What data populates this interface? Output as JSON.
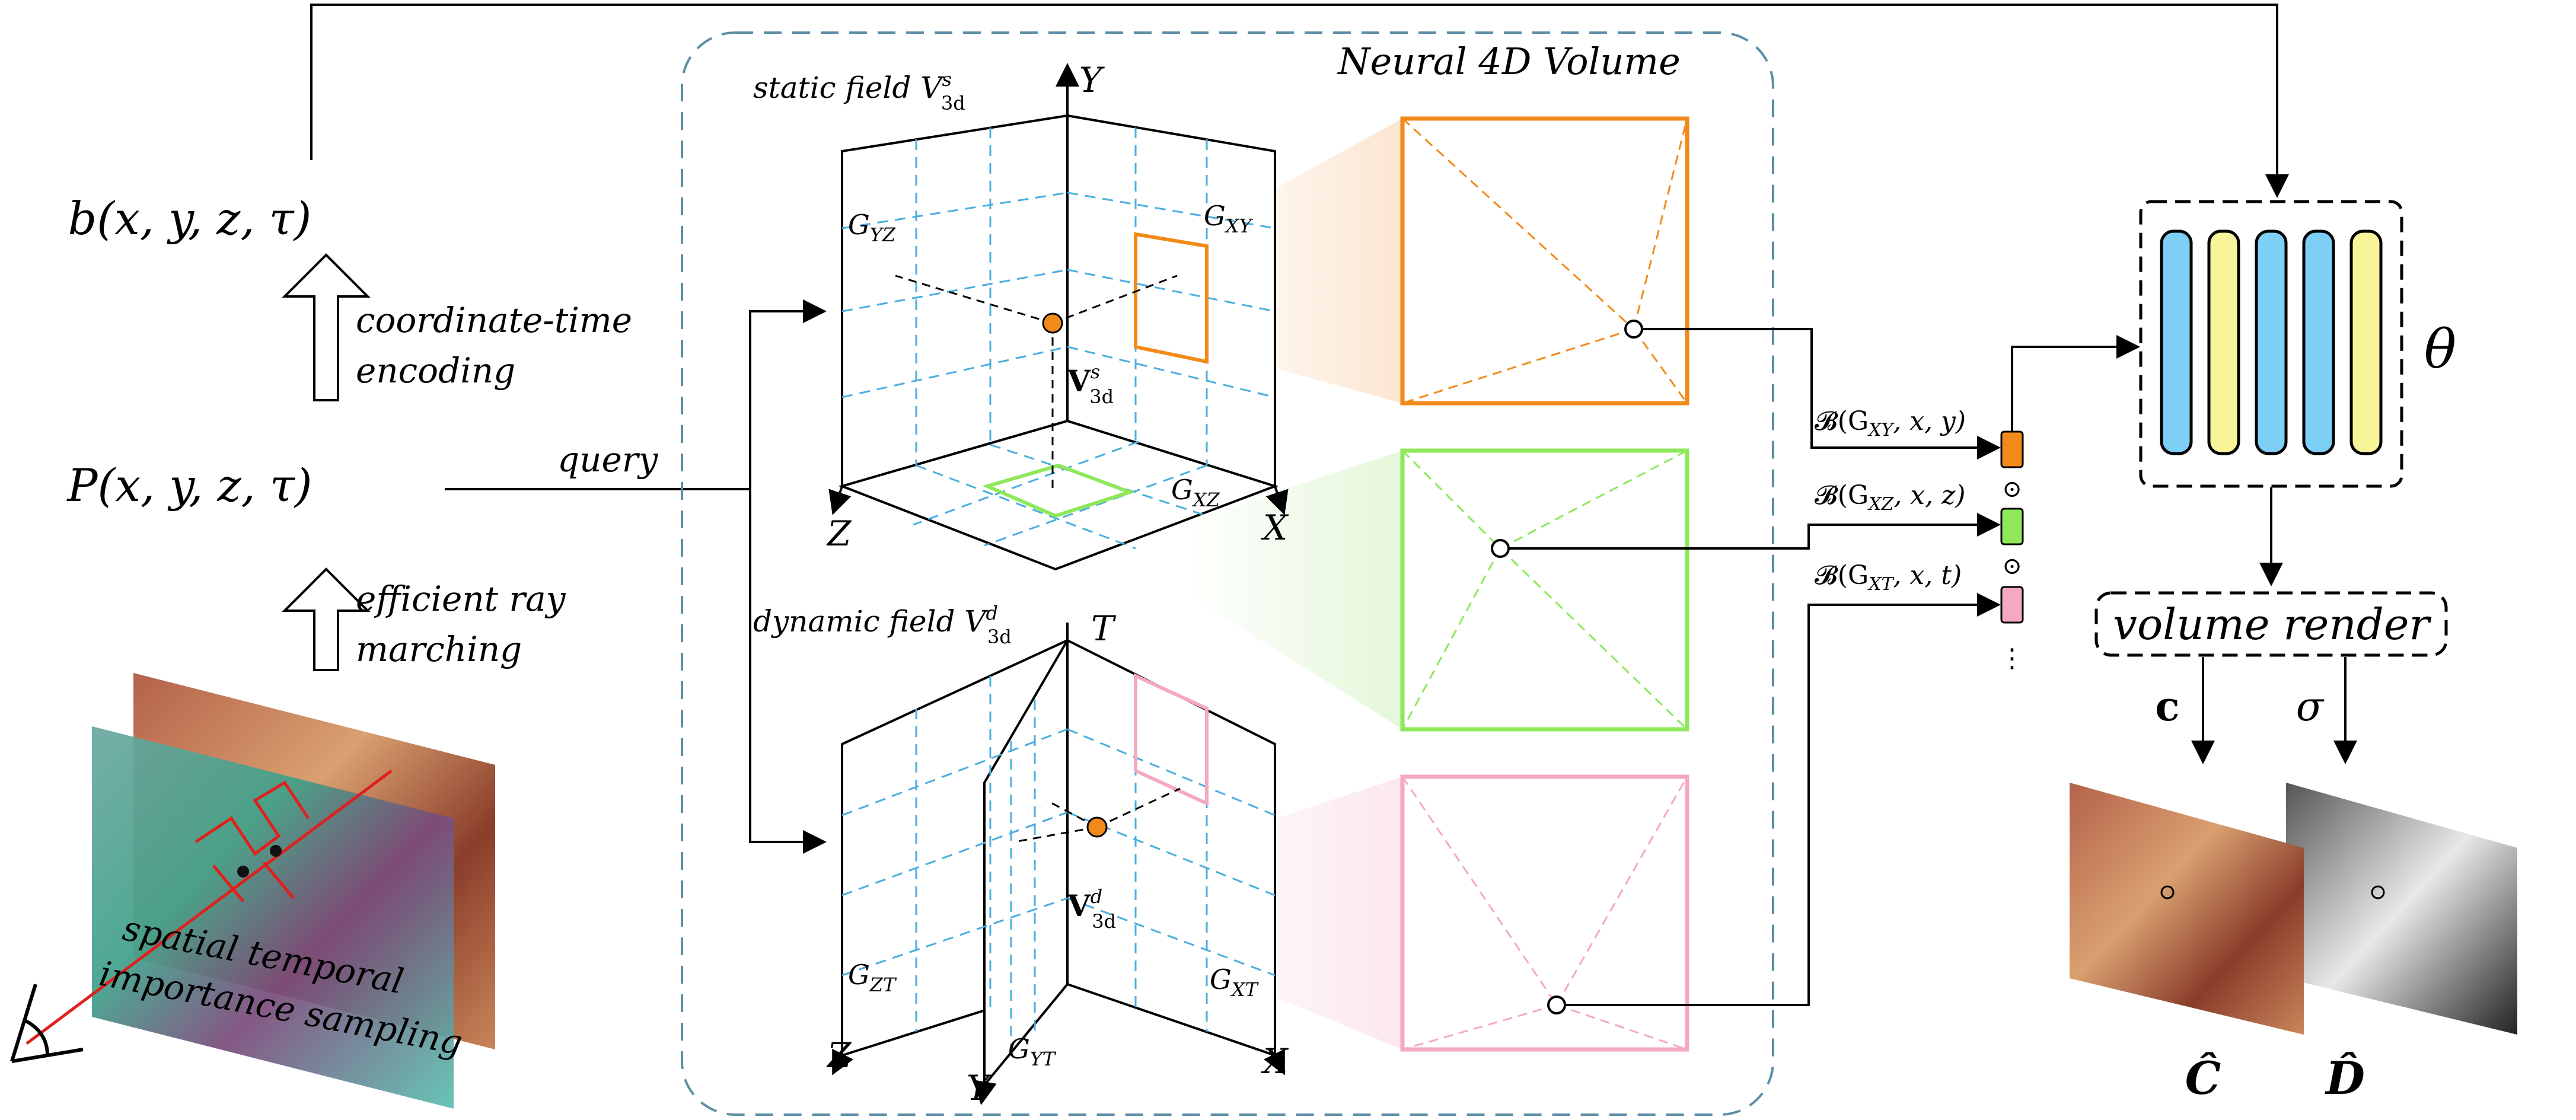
{
  "left": {
    "b_func": "b(x, y, z, τ)",
    "p_func": "P(x, y, z, τ)",
    "enc_line1": "coordinate-time",
    "enc_line2": "encoding",
    "ray_line1": "efficient ray",
    "ray_line2": "marching",
    "query": "query",
    "sampling_line1": "spatial temporal",
    "sampling_line2": "importance sampling"
  },
  "center": {
    "title": "Neural 4D Volume",
    "static_label": "static field V",
    "static_sup": "s",
    "static_sub": "3d",
    "dynamic_label": "dynamic field V",
    "dynamic_sup": "d",
    "dynamic_sub": "3d",
    "axis_y": "Y",
    "axis_z": "Z",
    "axis_x": "X",
    "axis_t": "T",
    "g_yz": "G",
    "g_yz_sub": "YZ",
    "g_xy": "G",
    "g_xy_sub": "XY",
    "g_xz": "G",
    "g_xz_sub": "XZ",
    "g_zt": "G",
    "g_zt_sub": "ZT",
    "g_xt": "G",
    "g_xt_sub": "XT",
    "g_yt": "G",
    "g_yt_sub": "YT",
    "v_static": "V",
    "v_static_sup": "s",
    "v_static_sub": "3d",
    "v_dynamic": "V",
    "v_dynamic_sup": "d",
    "v_dynamic_sub": "3d"
  },
  "features": {
    "b_xy": "𝓑(G",
    "b_xy_sub": "XY",
    "b_xy_rest": ", x, y)",
    "b_xz": "𝓑(G",
    "b_xz_sub": "XZ",
    "b_xz_rest": ", x, z)",
    "b_xt": "𝓑(G",
    "b_xt_sub": "XT",
    "b_xt_rest": ", x, t)",
    "odot": "⊙",
    "ellipsis": "⋮"
  },
  "right": {
    "theta": "θ",
    "volume_render": "volume render",
    "c": "c",
    "sigma": "σ",
    "c_hat": "Ĉ",
    "d_hat": "D̂"
  },
  "colors": {
    "orange": "#f28a1a",
    "green": "#8ee85a",
    "pink": "#f4a8c4",
    "blue_bar": "#7dcff5",
    "yellow_bar": "#f8f49a",
    "grid_dash": "#4aaee0",
    "container": "#5c8ea6"
  }
}
